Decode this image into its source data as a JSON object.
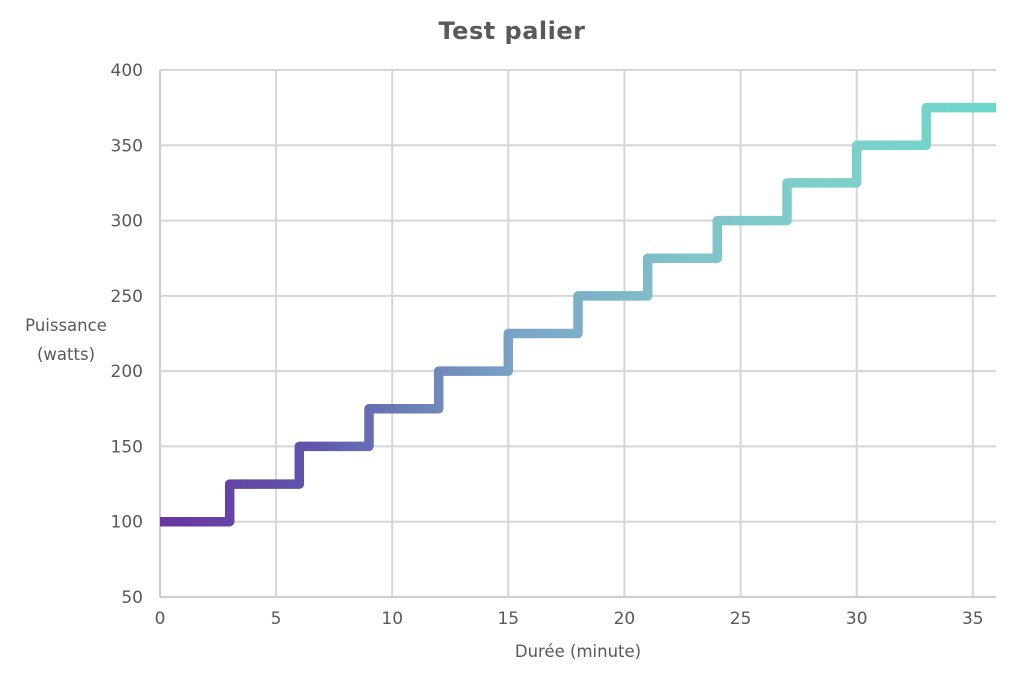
{
  "chart_data": {
    "type": "line",
    "subtype": "step",
    "title": "Test palier",
    "xlabel": "Durée (minute)",
    "ylabel": "Puissance (watts)",
    "ylabel_lines": [
      "Puissance",
      "(watts)"
    ],
    "xlim": [
      0,
      36
    ],
    "ylim": [
      50,
      400
    ],
    "x_ticks": [
      0,
      5,
      10,
      15,
      20,
      25,
      30,
      35
    ],
    "y_ticks": [
      400,
      350,
      300,
      250,
      200,
      150,
      100,
      50
    ],
    "grid": true,
    "legend": "none",
    "step_increment_watts": 25,
    "step_duration_minutes": 3,
    "steps": [
      {
        "start_min": 0,
        "end_min": 3,
        "watts": 100
      },
      {
        "start_min": 3,
        "end_min": 6,
        "watts": 125
      },
      {
        "start_min": 6,
        "end_min": 9,
        "watts": 150
      },
      {
        "start_min": 9,
        "end_min": 12,
        "watts": 175
      },
      {
        "start_min": 12,
        "end_min": 15,
        "watts": 200
      },
      {
        "start_min": 15,
        "end_min": 18,
        "watts": 225
      },
      {
        "start_min": 18,
        "end_min": 21,
        "watts": 250
      },
      {
        "start_min": 21,
        "end_min": 24,
        "watts": 275
      },
      {
        "start_min": 24,
        "end_min": 27,
        "watts": 300
      },
      {
        "start_min": 27,
        "end_min": 30,
        "watts": 325
      },
      {
        "start_min": 30,
        "end_min": 33,
        "watts": 350
      },
      {
        "start_min": 33,
        "end_min": 36,
        "watts": 375
      }
    ],
    "colors": {
      "text": "#595959",
      "grid": "#d6d6d6",
      "axis": "#cfcfcf",
      "background": "#ffffff",
      "line_gradient": [
        {
          "offset": 0,
          "color": "#6a35a0"
        },
        {
          "offset": 0.18,
          "color": "#5f55ab"
        },
        {
          "offset": 0.3,
          "color": "#6b80b7"
        },
        {
          "offset": 0.44,
          "color": "#7ba7c7"
        },
        {
          "offset": 0.62,
          "color": "#80c2c9"
        },
        {
          "offset": 0.8,
          "color": "#7fcfca"
        },
        {
          "offset": 1,
          "color": "#6cd8ca"
        }
      ]
    }
  }
}
